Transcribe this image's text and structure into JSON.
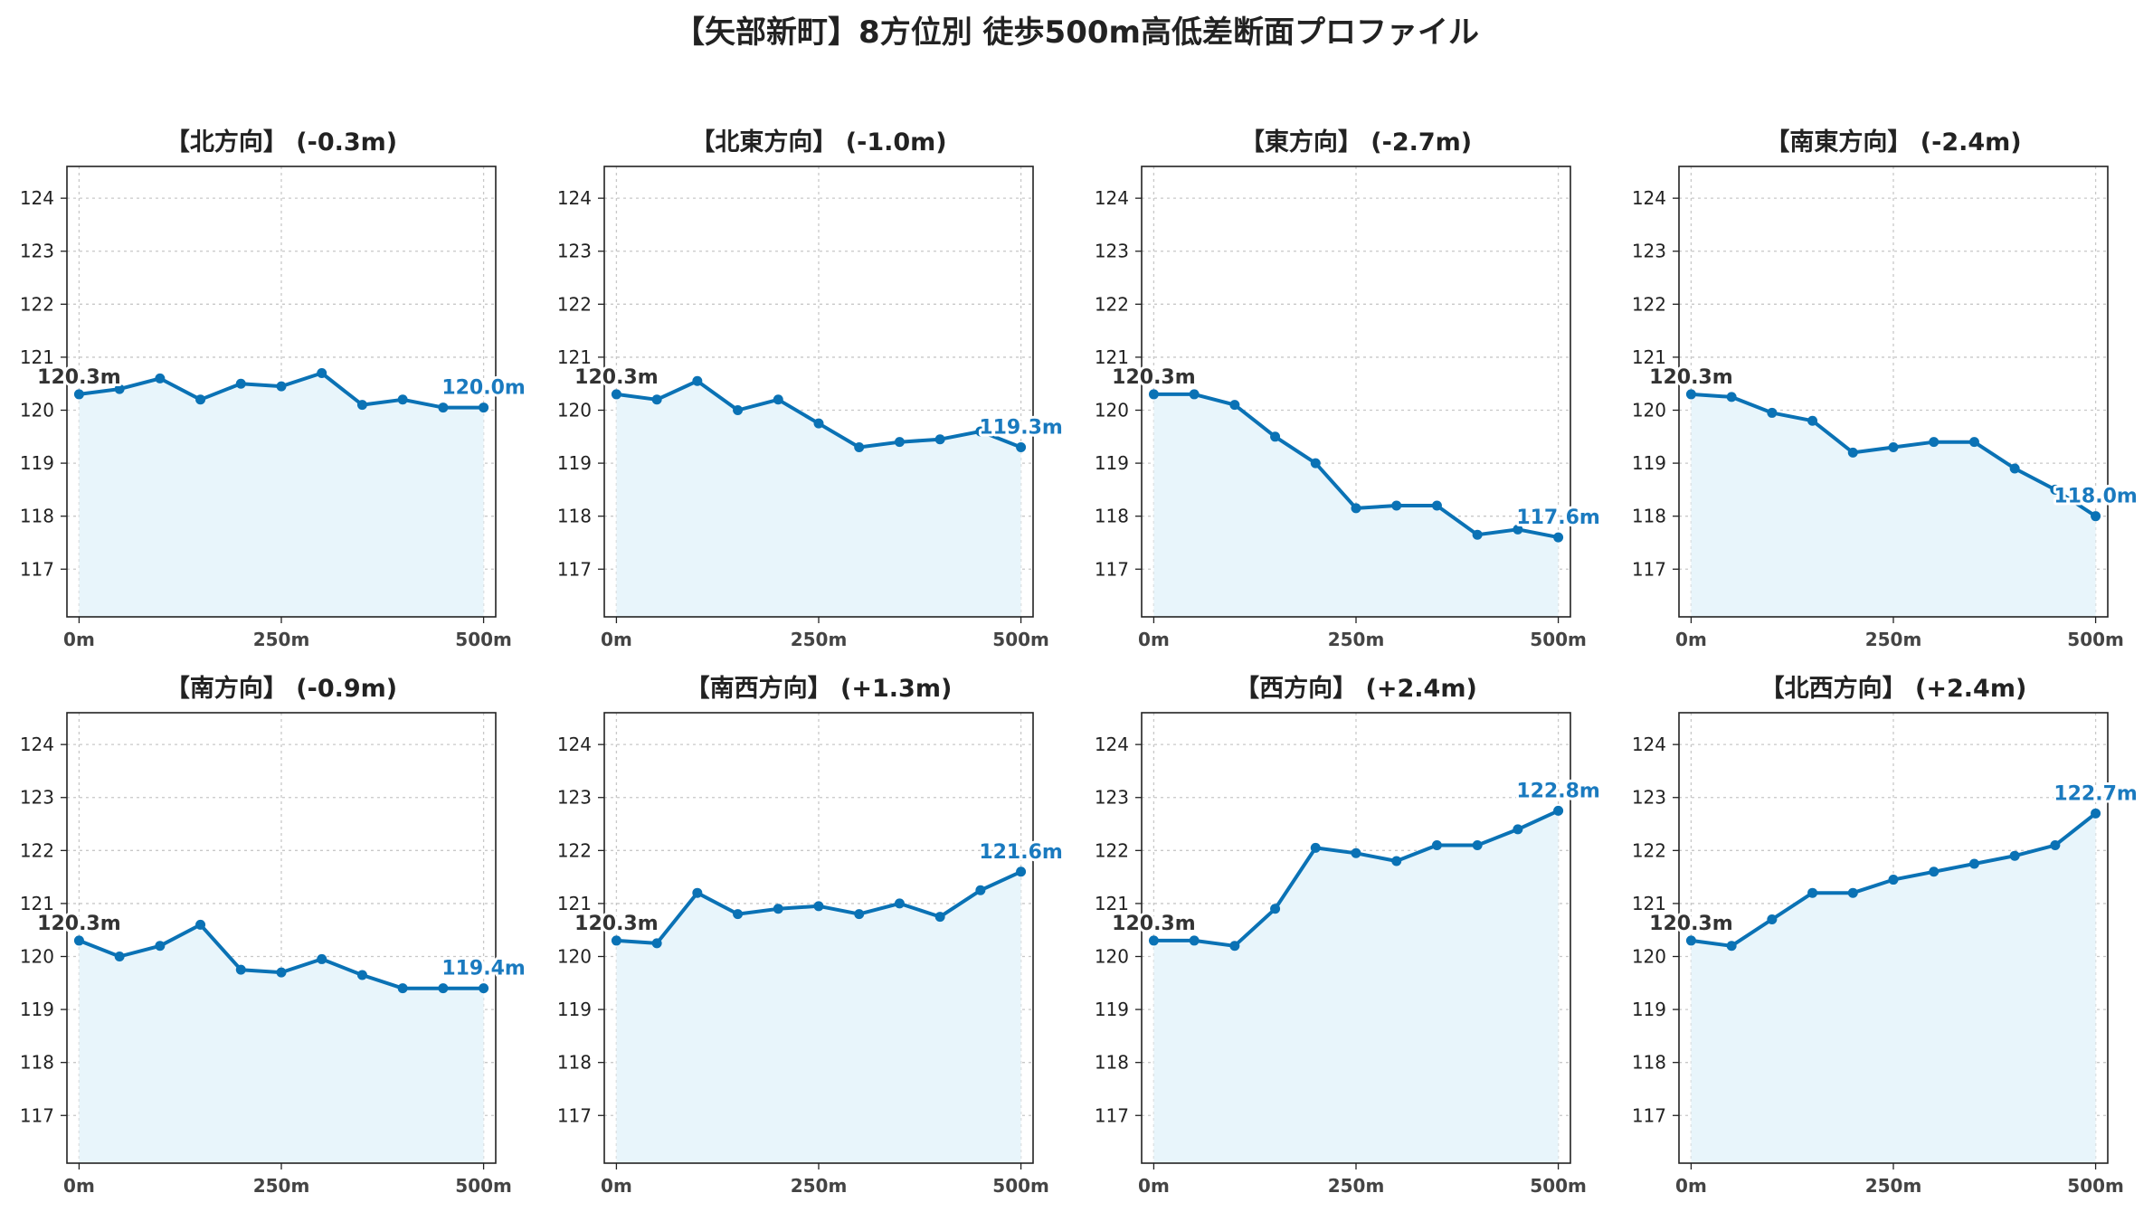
{
  "title": "【矢部新町】8方位別 徒歩500m高低差断面プロファイル",
  "colors": {
    "line": "#0a72b5",
    "fill": "#e8f5fb",
    "grid": "#c8c8c8",
    "start_label": "#333333",
    "end_label": "#1a7abf"
  },
  "chart_data": [
    {
      "type": "area",
      "title": "【北方向】 (-0.3m)",
      "x": [
        0,
        50,
        100,
        150,
        200,
        250,
        300,
        350,
        400,
        450,
        500
      ],
      "values": [
        120.3,
        120.4,
        120.6,
        120.2,
        120.5,
        120.45,
        120.7,
        120.1,
        120.2,
        120.05,
        120.05
      ],
      "xticks": [
        "0m",
        "250m",
        "500m"
      ],
      "yticks": [
        "117",
        "118",
        "119",
        "120",
        "121",
        "122",
        "123",
        "124"
      ],
      "ylim": [
        116.1,
        124.6
      ],
      "xlim": [
        -15,
        515
      ],
      "start_label": "120.3m",
      "end_label": "120.0m"
    },
    {
      "type": "area",
      "title": "【北東方向】 (-1.0m)",
      "x": [
        0,
        50,
        100,
        150,
        200,
        250,
        300,
        350,
        400,
        450,
        500
      ],
      "values": [
        120.3,
        120.2,
        120.55,
        120.0,
        120.2,
        119.75,
        119.3,
        119.4,
        119.45,
        119.6,
        119.3
      ],
      "xticks": [
        "0m",
        "250m",
        "500m"
      ],
      "yticks": [
        "117",
        "118",
        "119",
        "120",
        "121",
        "122",
        "123",
        "124"
      ],
      "ylim": [
        116.1,
        124.6
      ],
      "xlim": [
        -15,
        515
      ],
      "start_label": "120.3m",
      "end_label": "119.3m"
    },
    {
      "type": "area",
      "title": "【東方向】 (-2.7m)",
      "x": [
        0,
        50,
        100,
        150,
        200,
        250,
        300,
        350,
        400,
        450,
        500
      ],
      "values": [
        120.3,
        120.3,
        120.1,
        119.5,
        119.0,
        118.15,
        118.2,
        118.2,
        117.65,
        117.75,
        117.6
      ],
      "xticks": [
        "0m",
        "250m",
        "500m"
      ],
      "yticks": [
        "117",
        "118",
        "119",
        "120",
        "121",
        "122",
        "123",
        "124"
      ],
      "ylim": [
        116.1,
        124.6
      ],
      "xlim": [
        -15,
        515
      ],
      "start_label": "120.3m",
      "end_label": "117.6m"
    },
    {
      "type": "area",
      "title": "【南東方向】 (-2.4m)",
      "x": [
        0,
        50,
        100,
        150,
        200,
        250,
        300,
        350,
        400,
        450,
        500
      ],
      "values": [
        120.3,
        120.25,
        119.95,
        119.8,
        119.2,
        119.3,
        119.4,
        119.4,
        118.9,
        118.5,
        118.0
      ],
      "xticks": [
        "0m",
        "250m",
        "500m"
      ],
      "yticks": [
        "117",
        "118",
        "119",
        "120",
        "121",
        "122",
        "123",
        "124"
      ],
      "ylim": [
        116.1,
        124.6
      ],
      "xlim": [
        -15,
        515
      ],
      "start_label": "120.3m",
      "end_label": "118.0m"
    },
    {
      "type": "area",
      "title": "【南方向】 (-0.9m)",
      "x": [
        0,
        50,
        100,
        150,
        200,
        250,
        300,
        350,
        400,
        450,
        500
      ],
      "values": [
        120.3,
        120.0,
        120.2,
        120.6,
        119.75,
        119.7,
        119.95,
        119.65,
        119.4,
        119.4,
        119.4
      ],
      "xticks": [
        "0m",
        "250m",
        "500m"
      ],
      "yticks": [
        "117",
        "118",
        "119",
        "120",
        "121",
        "122",
        "123",
        "124"
      ],
      "ylim": [
        116.1,
        124.6
      ],
      "xlim": [
        -15,
        515
      ],
      "start_label": "120.3m",
      "end_label": "119.4m"
    },
    {
      "type": "area",
      "title": "【南西方向】 (+1.3m)",
      "x": [
        0,
        50,
        100,
        150,
        200,
        250,
        300,
        350,
        400,
        450,
        500
      ],
      "values": [
        120.3,
        120.25,
        121.2,
        120.8,
        120.9,
        120.95,
        120.8,
        121.0,
        120.75,
        121.25,
        121.6
      ],
      "xticks": [
        "0m",
        "250m",
        "500m"
      ],
      "yticks": [
        "117",
        "118",
        "119",
        "120",
        "121",
        "122",
        "123",
        "124"
      ],
      "ylim": [
        116.1,
        124.6
      ],
      "xlim": [
        -15,
        515
      ],
      "start_label": "120.3m",
      "end_label": "121.6m"
    },
    {
      "type": "area",
      "title": "【西方向】 (+2.4m)",
      "x": [
        0,
        50,
        100,
        150,
        200,
        250,
        300,
        350,
        400,
        450,
        500
      ],
      "values": [
        120.3,
        120.3,
        120.2,
        120.9,
        122.05,
        121.95,
        121.8,
        122.1,
        122.1,
        122.4,
        122.75
      ],
      "xticks": [
        "0m",
        "250m",
        "500m"
      ],
      "yticks": [
        "117",
        "118",
        "119",
        "120",
        "121",
        "122",
        "123",
        "124"
      ],
      "ylim": [
        116.1,
        124.6
      ],
      "xlim": [
        -15,
        515
      ],
      "start_label": "120.3m",
      "end_label": "122.8m"
    },
    {
      "type": "area",
      "title": "【北西方向】 (+2.4m)",
      "x": [
        0,
        50,
        100,
        150,
        200,
        250,
        300,
        350,
        400,
        450,
        500
      ],
      "values": [
        120.3,
        120.2,
        120.7,
        121.2,
        121.2,
        121.45,
        121.6,
        121.75,
        121.9,
        122.1,
        122.7
      ],
      "xticks": [
        "0m",
        "250m",
        "500m"
      ],
      "yticks": [
        "117",
        "118",
        "119",
        "120",
        "121",
        "122",
        "123",
        "124"
      ],
      "ylim": [
        116.1,
        124.6
      ],
      "xlim": [
        -15,
        515
      ],
      "start_label": "120.3m",
      "end_label": "122.7m"
    }
  ]
}
